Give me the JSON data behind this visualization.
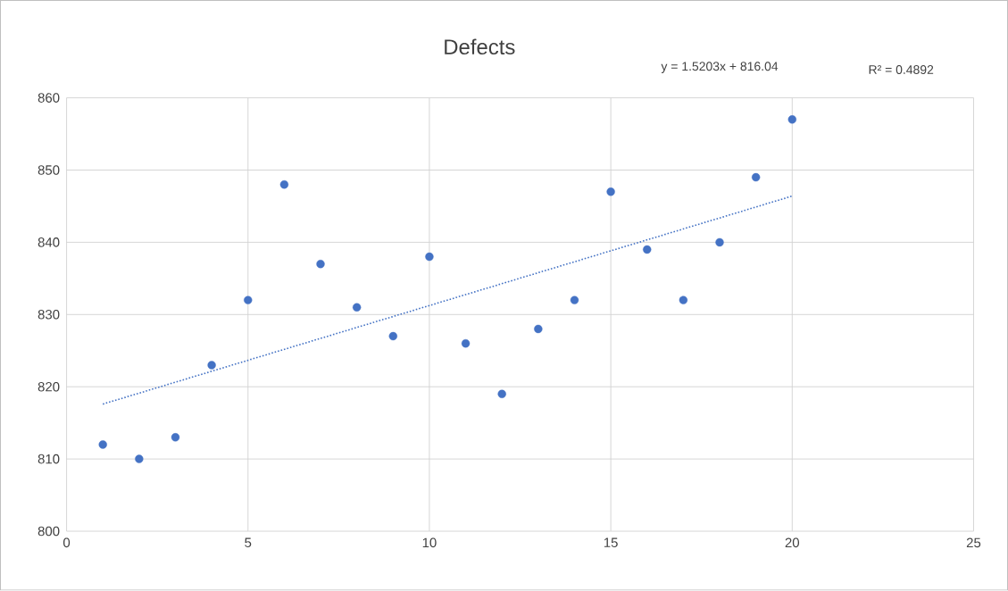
{
  "chart_data": {
    "type": "scatter",
    "title": "Defects",
    "annotations": [
      "y = 1.5203x + 816.04",
      "R² = 0.4892"
    ],
    "xlim": [
      0,
      25
    ],
    "xticks": [
      0,
      5,
      10,
      15,
      20,
      25
    ],
    "ylim": [
      800,
      860
    ],
    "yticks": [
      800,
      810,
      820,
      830,
      840,
      850,
      860
    ],
    "grid": true,
    "marker": "circle",
    "series": [
      {
        "color": "#4472c4",
        "x": [
          1,
          2,
          3,
          4,
          5,
          6,
          7,
          8,
          9,
          10,
          11,
          12,
          13,
          14,
          15,
          16,
          17,
          18,
          19,
          20
        ],
        "values": [
          812,
          810,
          813,
          823,
          832,
          848,
          837,
          831,
          827,
          838,
          826,
          819,
          828,
          832,
          847,
          839,
          832,
          840,
          849,
          857
        ]
      },
      {
        "type": "line",
        "color": "#4472c4",
        "line_style": "dotted",
        "marker": "none",
        "x": [
          1,
          20
        ],
        "values": [
          817.6,
          846.4
        ]
      }
    ]
  }
}
